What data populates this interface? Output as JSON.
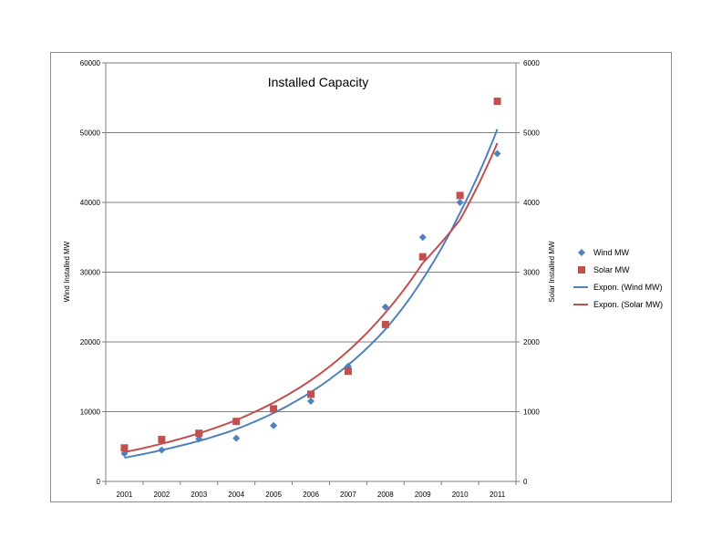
{
  "chart_data": {
    "type": "scatter",
    "title": "Installed Capacity",
    "ylabel": "Wind Installed MW",
    "y2label": "Solar Installed MW",
    "x": [
      2001,
      2002,
      2003,
      2004,
      2005,
      2006,
      2007,
      2008,
      2009,
      2010,
      2011
    ],
    "ylim": [
      0,
      60000
    ],
    "y2lim": [
      0,
      6000
    ],
    "yticks": [
      0,
      10000,
      20000,
      30000,
      40000,
      50000,
      60000
    ],
    "y2ticks": [
      0,
      1000,
      2000,
      3000,
      4000,
      5000,
      6000
    ],
    "grid": true,
    "legend_position": "right",
    "series": [
      {
        "name": "Wind MW",
        "axis": "left",
        "marker": "diamond",
        "color": "#4f81bd",
        "values": [
          4000,
          4500,
          6100,
          6200,
          8000,
          11500,
          16500,
          25000,
          35000,
          40000,
          47000
        ]
      },
      {
        "name": "Solar MW",
        "axis": "right",
        "marker": "square",
        "color": "#c0504d",
        "values": [
          480,
          600,
          690,
          860,
          1040,
          1250,
          1580,
          2250,
          3220,
          4100,
          5450
        ]
      }
    ],
    "trendlines": [
      {
        "name": "Expon. (Wind MW)",
        "axis": "left",
        "color": "#4f81bd",
        "values": [
          3400,
          4500,
          5800,
          7500,
          9800,
          12800,
          16700,
          21800,
          29000,
          38500,
          50500
        ]
      },
      {
        "name": "Expon. (Solar MW)",
        "axis": "right",
        "color": "#c0504d",
        "values": [
          420,
          540,
          690,
          880,
          1130,
          1450,
          1870,
          2420,
          3130,
          3750,
          4850
        ]
      }
    ]
  }
}
